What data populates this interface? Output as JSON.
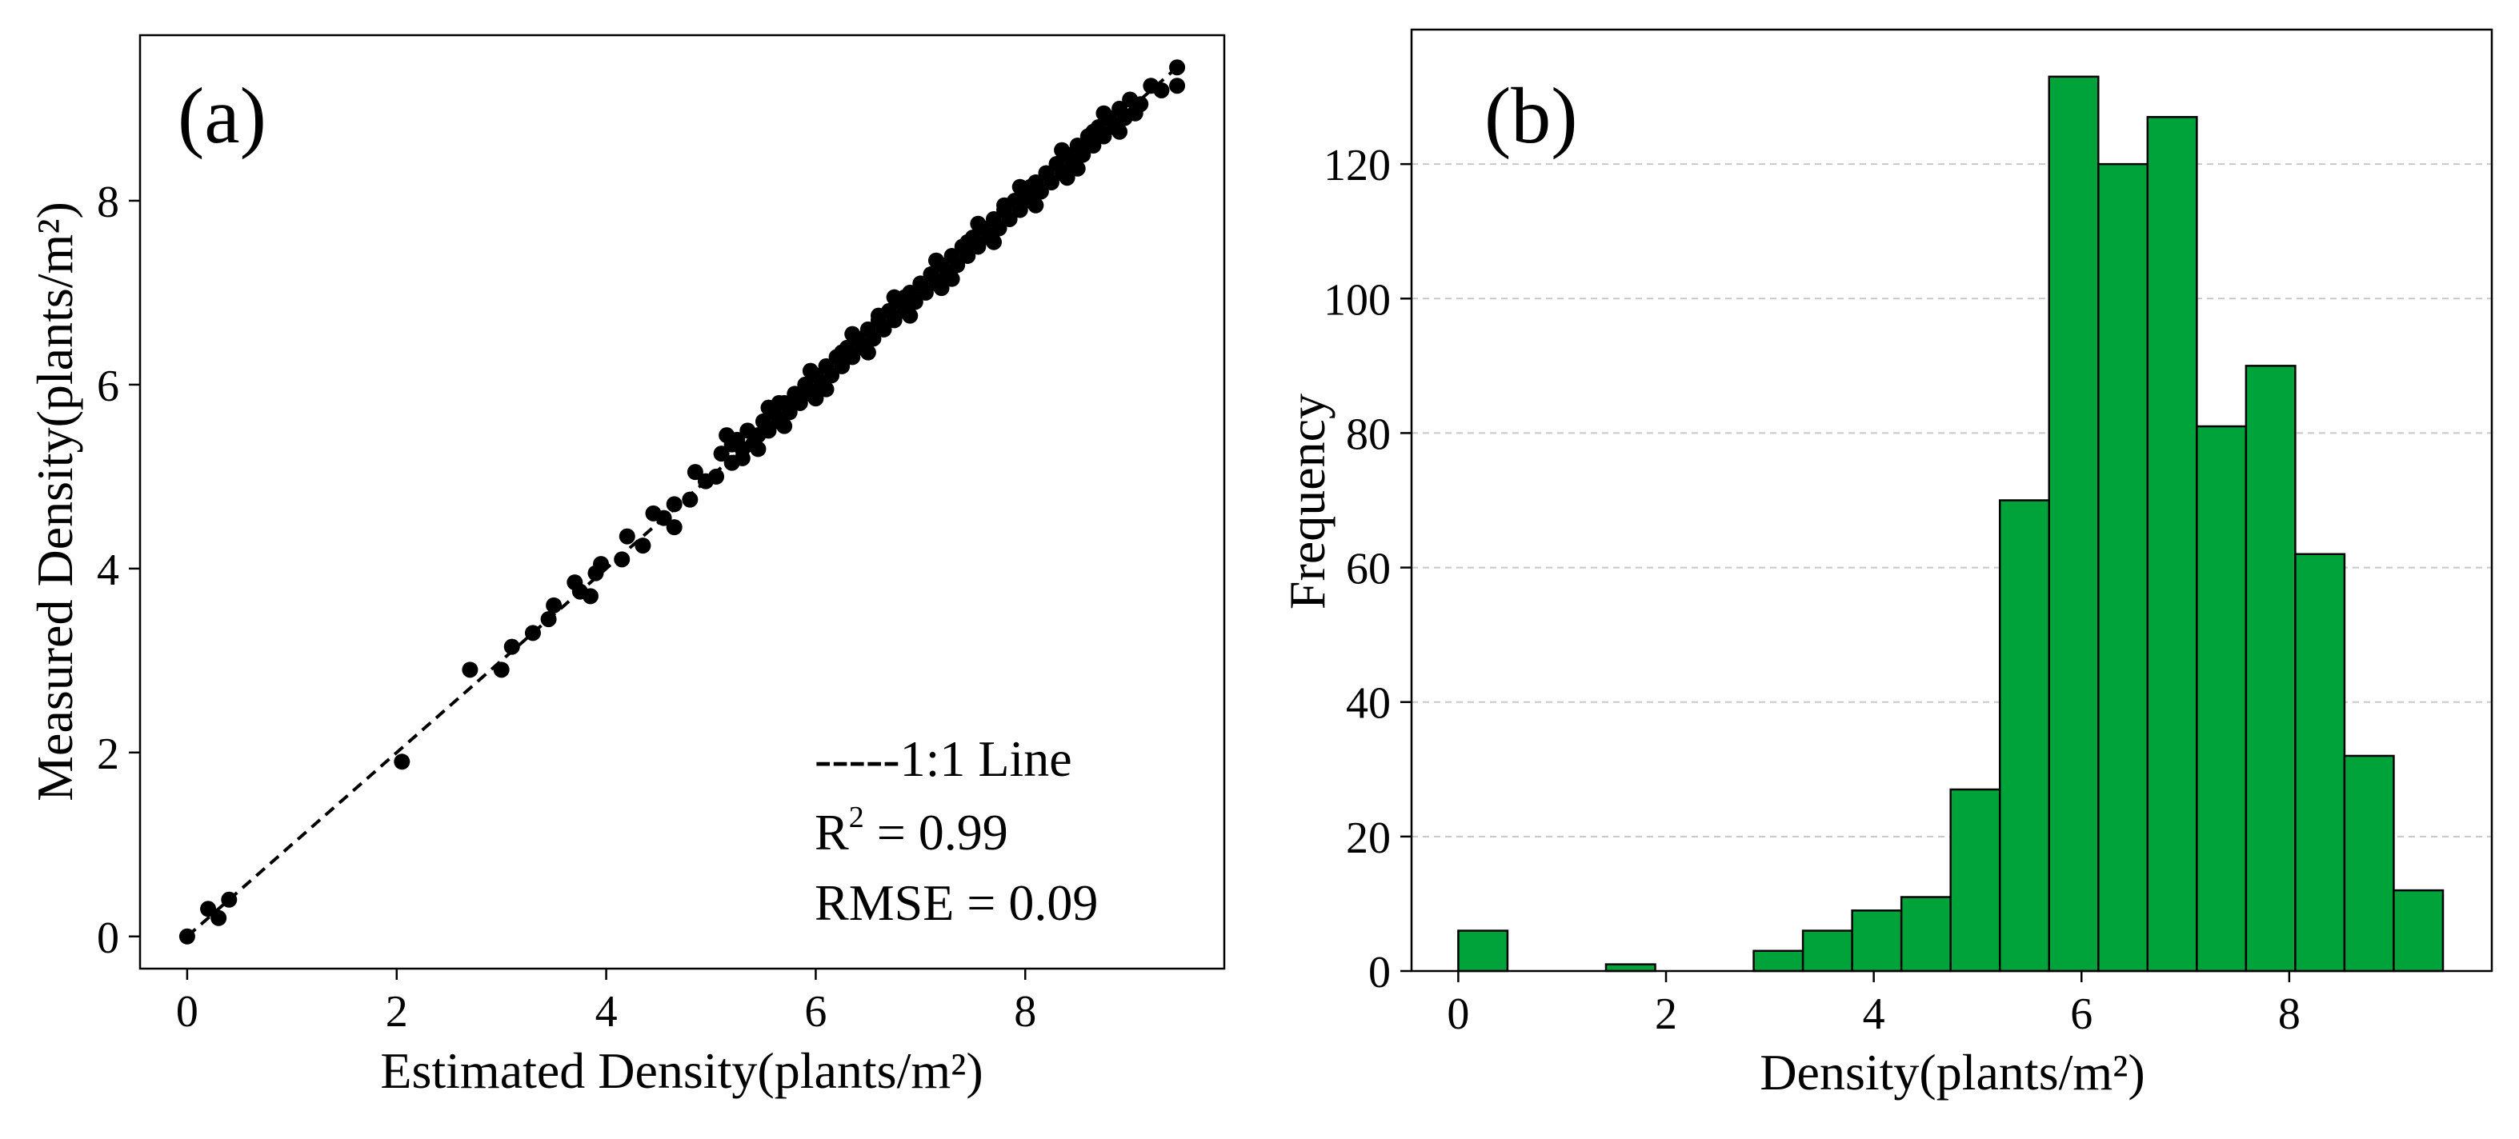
{
  "colors": {
    "bar_fill": "#00a33a",
    "bar_edge": "#000000",
    "point": "#000000",
    "grid": "#c8c8c8"
  },
  "chart_data": [
    {
      "type": "scatter",
      "panel_label": "(a)",
      "xlabel": "Estimated Density(plants/m²)",
      "ylabel": "Measured Density(plants/m²)",
      "xlim": [
        -0.45,
        9.9
      ],
      "ylim": [
        -0.35,
        9.8
      ],
      "xticks": [
        0,
        2,
        4,
        6,
        8
      ],
      "yticks": [
        0,
        2,
        4,
        6,
        8
      ],
      "reference_line": {
        "label": "-----1:1 Line",
        "x": [
          0,
          9.5
        ],
        "y": [
          0,
          9.5
        ]
      },
      "stats": {
        "r2_label": "R",
        "r2_exp": "2",
        "r2_value": " = 0.99",
        "rmse_text": "RMSE = 0.09"
      },
      "points": [
        [
          0.0,
          0.0
        ],
        [
          0.2,
          0.3
        ],
        [
          0.3,
          0.2
        ],
        [
          0.4,
          0.4
        ],
        [
          2.05,
          1.9
        ],
        [
          2.7,
          2.9
        ],
        [
          3.0,
          2.9
        ],
        [
          3.1,
          3.15
        ],
        [
          3.3,
          3.3
        ],
        [
          3.45,
          3.45
        ],
        [
          3.5,
          3.6
        ],
        [
          3.7,
          3.85
        ],
        [
          3.75,
          3.75
        ],
        [
          3.85,
          3.7
        ],
        [
          3.9,
          3.95
        ],
        [
          3.95,
          4.05
        ],
        [
          4.15,
          4.1
        ],
        [
          4.2,
          4.35
        ],
        [
          4.35,
          4.25
        ],
        [
          4.45,
          4.6
        ],
        [
          4.55,
          4.55
        ],
        [
          4.65,
          4.45
        ],
        [
          4.65,
          4.7
        ],
        [
          4.8,
          4.75
        ],
        [
          4.85,
          5.05
        ],
        [
          4.95,
          4.95
        ],
        [
          5.05,
          5.0
        ],
        [
          5.1,
          5.25
        ],
        [
          5.2,
          5.15
        ],
        [
          5.25,
          5.4
        ],
        [
          5.3,
          5.3
        ],
        [
          5.35,
          5.5
        ],
        [
          5.4,
          5.35
        ],
        [
          5.45,
          5.45
        ],
        [
          5.5,
          5.6
        ],
        [
          5.55,
          5.5
        ],
        [
          5.6,
          5.7
        ],
        [
          5.65,
          5.6
        ],
        [
          5.7,
          5.8
        ],
        [
          5.75,
          5.7
        ],
        [
          5.8,
          5.9
        ],
        [
          5.85,
          5.8
        ],
        [
          5.9,
          6.0
        ],
        [
          5.95,
          5.9
        ],
        [
          6.0,
          6.1
        ],
        [
          6.05,
          6.0
        ],
        [
          6.1,
          6.2
        ],
        [
          6.15,
          6.1
        ],
        [
          6.2,
          6.3
        ],
        [
          6.25,
          6.2
        ],
        [
          6.3,
          6.4
        ],
        [
          6.35,
          6.3
        ],
        [
          6.4,
          6.5
        ],
        [
          6.45,
          6.4
        ],
        [
          6.5,
          6.6
        ],
        [
          6.55,
          6.5
        ],
        [
          6.6,
          6.7
        ],
        [
          6.65,
          6.6
        ],
        [
          6.7,
          6.8
        ],
        [
          6.75,
          6.7
        ],
        [
          6.8,
          6.9
        ],
        [
          6.85,
          6.8
        ],
        [
          6.9,
          7.0
        ],
        [
          6.95,
          6.9
        ],
        [
          7.0,
          7.1
        ],
        [
          7.05,
          7.0
        ],
        [
          7.1,
          7.2
        ],
        [
          7.15,
          7.1
        ],
        [
          7.2,
          7.3
        ],
        [
          7.25,
          7.2
        ],
        [
          7.3,
          7.4
        ],
        [
          7.35,
          7.3
        ],
        [
          7.4,
          7.5
        ],
        [
          7.45,
          7.4
        ],
        [
          7.5,
          7.6
        ],
        [
          7.55,
          7.5
        ],
        [
          7.6,
          7.7
        ],
        [
          7.65,
          7.6
        ],
        [
          7.7,
          7.8
        ],
        [
          7.75,
          7.7
        ],
        [
          7.8,
          7.9
        ],
        [
          7.85,
          7.8
        ],
        [
          7.9,
          8.0
        ],
        [
          7.95,
          7.9
        ],
        [
          8.0,
          8.1
        ],
        [
          8.05,
          8.0
        ],
        [
          8.1,
          8.2
        ],
        [
          8.15,
          8.1
        ],
        [
          8.2,
          8.3
        ],
        [
          8.25,
          8.2
        ],
        [
          8.3,
          8.4
        ],
        [
          8.35,
          8.3
        ],
        [
          8.4,
          8.5
        ],
        [
          8.45,
          8.4
        ],
        [
          8.5,
          8.6
        ],
        [
          8.55,
          8.5
        ],
        [
          8.6,
          8.7
        ],
        [
          8.65,
          8.6
        ],
        [
          8.7,
          8.8
        ],
        [
          8.75,
          8.7
        ],
        [
          8.8,
          8.9
        ],
        [
          8.85,
          8.8
        ],
        [
          8.9,
          9.0
        ],
        [
          8.95,
          8.9
        ],
        [
          9.0,
          9.1
        ],
        [
          9.1,
          9.05
        ],
        [
          9.2,
          9.25
        ],
        [
          9.3,
          9.2
        ],
        [
          9.45,
          9.45
        ],
        [
          9.45,
          9.25
        ],
        [
          5.15,
          5.45
        ],
        [
          5.3,
          5.2
        ],
        [
          5.55,
          5.75
        ],
        [
          5.7,
          5.55
        ],
        [
          5.95,
          6.15
        ],
        [
          6.1,
          5.95
        ],
        [
          6.35,
          6.55
        ],
        [
          6.5,
          6.35
        ],
        [
          6.75,
          6.95
        ],
        [
          6.9,
          6.75
        ],
        [
          7.15,
          7.35
        ],
        [
          7.3,
          7.15
        ],
        [
          7.55,
          7.75
        ],
        [
          7.7,
          7.55
        ],
        [
          7.95,
          8.15
        ],
        [
          8.1,
          7.95
        ],
        [
          8.35,
          8.55
        ],
        [
          8.5,
          8.35
        ],
        [
          8.75,
          8.95
        ],
        [
          8.9,
          8.75
        ],
        [
          6.0,
          5.85
        ],
        [
          6.6,
          6.75
        ],
        [
          7.2,
          7.05
        ],
        [
          7.8,
          7.95
        ],
        [
          8.4,
          8.25
        ],
        [
          5.2,
          5.35
        ],
        [
          5.45,
          5.3
        ],
        [
          5.65,
          5.8
        ],
        [
          6.25,
          6.35
        ],
        [
          6.85,
          6.95
        ],
        [
          7.45,
          7.55
        ],
        [
          8.05,
          8.15
        ],
        [
          8.65,
          8.75
        ],
        [
          9.05,
          8.95
        ]
      ]
    },
    {
      "type": "bar",
      "panel_label": "(b)",
      "xlabel": "Density(plants/m²)",
      "ylabel": "Frequency",
      "xlim": [
        -0.45,
        9.95
      ],
      "ylim": [
        0,
        140
      ],
      "xticks": [
        0,
        2,
        4,
        6,
        8
      ],
      "yticks": [
        0,
        20,
        40,
        60,
        80,
        100,
        120
      ],
      "bin_width": 0.474,
      "bins": [
        {
          "start": 0.0,
          "value": 6
        },
        {
          "start": 0.474,
          "value": 0
        },
        {
          "start": 0.948,
          "value": 0
        },
        {
          "start": 1.422,
          "value": 1
        },
        {
          "start": 1.896,
          "value": 0
        },
        {
          "start": 2.37,
          "value": 0
        },
        {
          "start": 2.844,
          "value": 3
        },
        {
          "start": 3.318,
          "value": 6
        },
        {
          "start": 3.792,
          "value": 9
        },
        {
          "start": 4.266,
          "value": 11
        },
        {
          "start": 4.74,
          "value": 27
        },
        {
          "start": 5.214,
          "value": 70
        },
        {
          "start": 5.688,
          "value": 133
        },
        {
          "start": 6.162,
          "value": 120
        },
        {
          "start": 6.636,
          "value": 127
        },
        {
          "start": 7.11,
          "value": 81
        },
        {
          "start": 7.584,
          "value": 90
        },
        {
          "start": 8.058,
          "value": 62
        },
        {
          "start": 8.532,
          "value": 32
        },
        {
          "start": 9.006,
          "value": 12
        }
      ]
    }
  ]
}
